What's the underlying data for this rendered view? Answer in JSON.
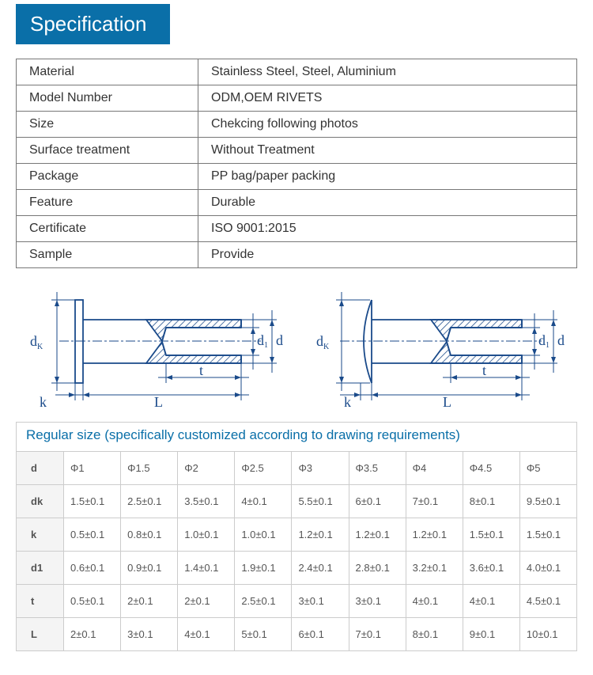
{
  "header": {
    "title": "Specification"
  },
  "spec_rows": [
    {
      "label": "Material",
      "value": "Stainless Steel, Steel, Aluminium"
    },
    {
      "label": "Model Number",
      "value": "ODM,OEM RIVETS"
    },
    {
      "label": "Size",
      "value": "Chekcing following photos"
    },
    {
      "label": "Surface treatment",
      "value": "Without Treatment"
    },
    {
      "label": "Package",
      "value": "PP bag/paper packing"
    },
    {
      "label": "Feature",
      "value": "Durable"
    },
    {
      "label": "Certificate",
      "value": "ISO 9001:2015"
    },
    {
      "label": "Sample",
      "value": "Provide"
    }
  ],
  "diagram": {
    "labels": {
      "dk": "d",
      "dk_sub": "K",
      "d1": "d",
      "d1_sub": "1",
      "d": "d",
      "t": "t",
      "k": "k",
      "L": "L"
    },
    "colors": {
      "line": "#1a4a8a",
      "hatch": "#1a4a8a"
    }
  },
  "size_section": {
    "title": "Regular size (specifically customized according to drawing requirements)",
    "columns": [
      "Φ1",
      "Φ1.5",
      "Φ2",
      "Φ2.5",
      "Φ3",
      "Φ3.5",
      "Φ4",
      "Φ4.5",
      "Φ5"
    ],
    "rows": [
      {
        "label": "d",
        "values": [
          "Φ1",
          "Φ1.5",
          "Φ2",
          "Φ2.5",
          "Φ3",
          "Φ3.5",
          "Φ4",
          "Φ4.5",
          "Φ5"
        ]
      },
      {
        "label": "dk",
        "values": [
          "1.5±0.1",
          "2.5±0.1",
          "3.5±0.1",
          "4±0.1",
          "5.5±0.1",
          "6±0.1",
          "7±0.1",
          "8±0.1",
          "9.5±0.1"
        ]
      },
      {
        "label": "k",
        "values": [
          "0.5±0.1",
          "0.8±0.1",
          "1.0±0.1",
          "1.0±0.1",
          "1.2±0.1",
          "1.2±0.1",
          "1.2±0.1",
          "1.5±0.1",
          "1.5±0.1"
        ]
      },
      {
        "label": "d1",
        "values": [
          "0.6±0.1",
          "0.9±0.1",
          "1.4±0.1",
          "1.9±0.1",
          "2.4±0.1",
          "2.8±0.1",
          "3.2±0.1",
          "3.6±0.1",
          "4.0±0.1"
        ]
      },
      {
        "label": "t",
        "values": [
          "0.5±0.1",
          "2±0.1",
          "2±0.1",
          "2.5±0.1",
          "3±0.1",
          "3±0.1",
          "4±0.1",
          "4±0.1",
          "4.5±0.1"
        ]
      },
      {
        "label": "L",
        "values": [
          "2±0.1",
          "3±0.1",
          "4±0.1",
          "5±0.1",
          "6±0.1",
          "7±0.1",
          "8±0.1",
          "9±0.1",
          "10±0.1"
        ]
      }
    ],
    "styling": {
      "border_color": "#cccccc",
      "header_bg": "#f4f4f4",
      "font_size": 13,
      "text_color": "#555555",
      "title_color": "#0a6fa8"
    }
  }
}
